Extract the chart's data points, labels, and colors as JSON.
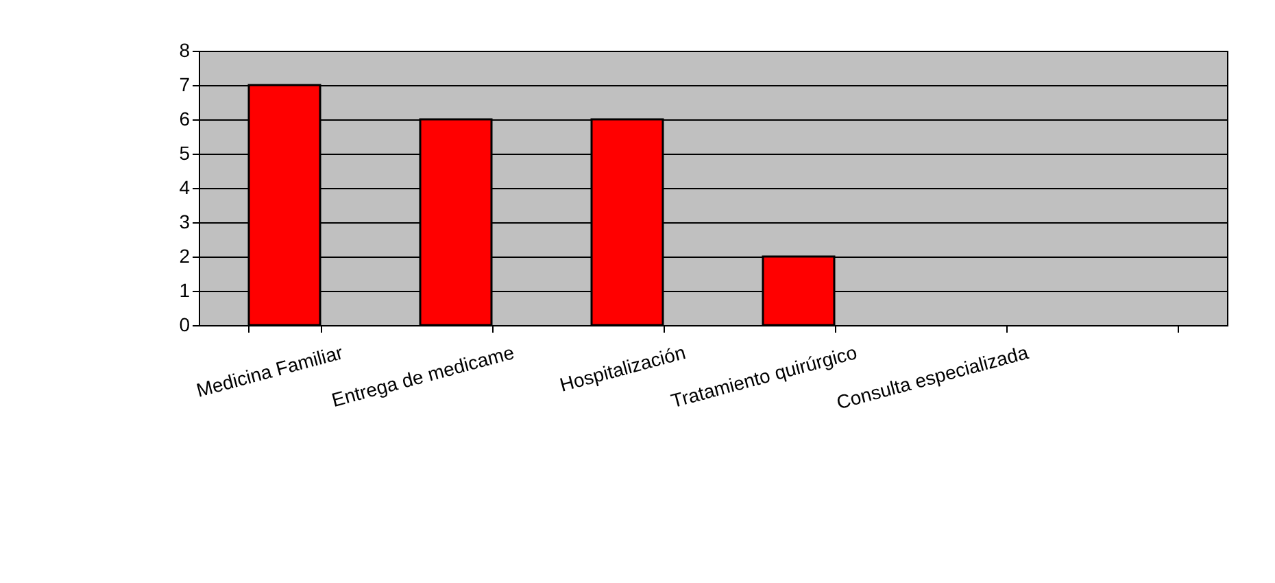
{
  "chart_data": {
    "type": "bar",
    "categories": [
      "Medicina Familiar",
      "Entrega de medicame",
      "Hospitalización",
      "Tratamiento quirúrgico",
      "Consulta especializada",
      null
    ],
    "values": [
      7,
      6,
      6,
      2,
      0,
      0
    ],
    "color": "#ff0000",
    "ylim": [
      0,
      8
    ],
    "yticks": [
      0,
      1,
      2,
      3,
      4,
      5,
      6,
      7,
      8
    ],
    "grid": "y"
  }
}
